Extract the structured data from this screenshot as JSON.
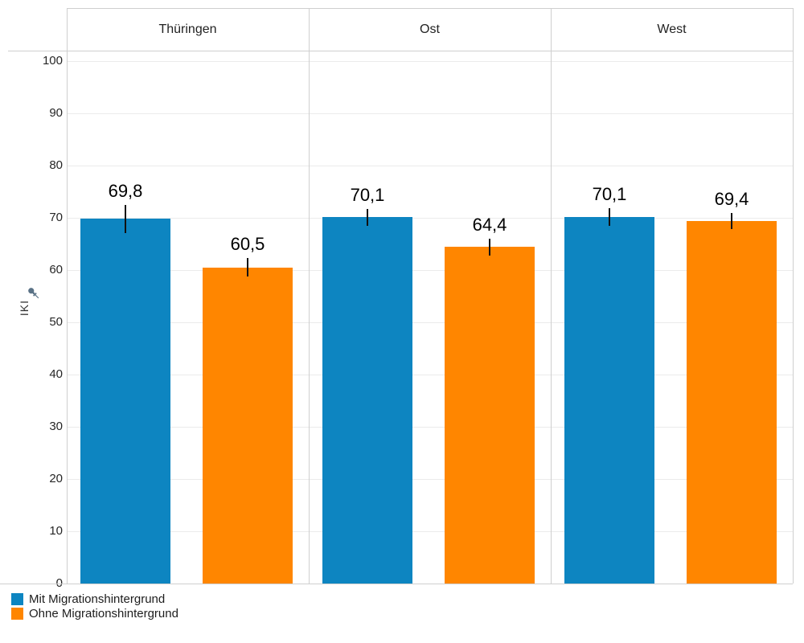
{
  "chart_data": {
    "type": "bar",
    "title": "",
    "panels": [
      "Thüringen",
      "Ost",
      "West"
    ],
    "y_axis": {
      "label": "IKI",
      "ylim": [
        0,
        100
      ],
      "tick_step": 10,
      "ticks": [
        100,
        90,
        80,
        70,
        60,
        50,
        40,
        30,
        20,
        10,
        0
      ],
      "pinned": true
    },
    "series": [
      {
        "name": "Mit Migrationshintergrund",
        "color": "#0d85c1",
        "values": [
          69.8,
          70.1,
          70.1
        ],
        "value_labels": [
          "69,8",
          "70,1",
          "70,1"
        ],
        "error_half_est": [
          2.7,
          1.6,
          1.7
        ]
      },
      {
        "name": "Ohne Migrationshintergrund",
        "color": "#ff8600",
        "values": [
          60.5,
          64.4,
          69.4
        ],
        "value_labels": [
          "60,5",
          "64,4",
          "69,4"
        ],
        "error_half_est": [
          1.8,
          1.6,
          1.5
        ]
      }
    ],
    "error_bars": true,
    "grid": true,
    "legend_position": "bottom-left",
    "value_label_decimal": "comma"
  },
  "icons": {
    "axis_pin": "pushpin"
  },
  "colors": {
    "grid": "#ebebeb",
    "border": "#cfcfcf",
    "blue": "#0d85c1",
    "orange": "#ff8600",
    "pin": "#5a7286",
    "text": "#1d1d1d"
  }
}
